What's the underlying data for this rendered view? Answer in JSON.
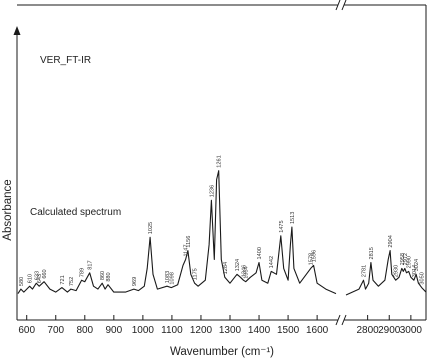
{
  "chart_data": {
    "type": "line",
    "xlabel": "Wavenumber (cm⁻¹)",
    "ylabel": "Absorbance",
    "x_segments": [
      {
        "xlim": [
          570,
          1665
        ],
        "ticks": [
          600,
          700,
          800,
          900,
          1000,
          1100,
          1200,
          1300,
          1400,
          1500,
          1600
        ]
      },
      {
        "xlim": [
          2700,
          3070
        ],
        "ticks": [
          2800,
          2900,
          3000
        ]
      }
    ],
    "ylim": [
      0,
      1
    ],
    "series": [
      {
        "name": "VER_FT-IR",
        "baseline": 0.595,
        "segments": [
          [
            [
              570,
              0.69
            ],
            [
              592,
              0.675
            ],
            [
              600,
              0.66
            ],
            [
              610,
              0.663
            ],
            [
              620,
              0.665
            ],
            [
              636,
              0.69
            ],
            [
              645,
              0.67
            ],
            [
              660,
              0.66
            ],
            [
              683,
              0.68
            ],
            [
              700,
              0.65
            ],
            [
              730,
              0.665
            ],
            [
              750,
              0.688
            ],
            [
              765,
              0.705
            ],
            [
              780,
              0.68
            ],
            [
              800,
              0.7
            ],
            [
              810,
              0.72
            ],
            [
              817,
              0.712
            ],
            [
              825,
              0.7
            ],
            [
              840,
              0.685
            ],
            [
              852,
              0.695
            ],
            [
              862,
              0.675
            ],
            [
              880,
              0.668
            ],
            [
              894,
              0.68
            ],
            [
              905,
              0.665
            ],
            [
              914,
              0.675
            ],
            [
              930,
              0.665
            ],
            [
              945,
              0.68
            ],
            [
              960,
              0.66
            ],
            [
              980,
              0.67
            ],
            [
              1000,
              0.68
            ],
            [
              1015,
              0.735
            ],
            [
              1025,
              0.85
            ],
            [
              1032,
              0.77
            ],
            [
              1045,
              0.685
            ],
            [
              1080,
              0.668
            ],
            [
              1105,
              0.68
            ],
            [
              1122,
              0.7
            ],
            [
              1135,
              0.685
            ],
            [
              1145,
              0.73
            ],
            [
              1155,
              0.745
            ],
            [
              1165,
              0.7
            ],
            [
              1180,
              0.69
            ],
            [
              1194,
              0.695
            ],
            [
              1206,
              0.685
            ],
            [
              1218,
              0.7
            ],
            [
              1230,
              0.725
            ],
            [
              1240,
              0.79
            ],
            [
              1248,
              0.85
            ],
            [
              1256,
              0.92
            ],
            [
              1261,
              0.945
            ],
            [
              1268,
              0.82
            ],
            [
              1282,
              0.69
            ],
            [
              1300,
              0.68
            ],
            [
              1320,
              0.695
            ],
            [
              1336,
              0.705
            ],
            [
              1350,
              0.682
            ],
            [
              1370,
              0.69
            ],
            [
              1384,
              0.7
            ],
            [
              1398,
              0.69
            ],
            [
              1412,
              0.71
            ],
            [
              1418,
              0.738
            ],
            [
              1430,
              0.705
            ],
            [
              1445,
              0.715
            ],
            [
              1462,
              0.805
            ],
            [
              1473,
              0.77
            ],
            [
              1485,
              0.722
            ],
            [
              1500,
              0.78
            ],
            [
              1510,
              0.92
            ],
            [
              1519,
              0.975
            ],
            [
              1530,
              0.72
            ],
            [
              1550,
              0.67
            ],
            [
              1575,
              0.682
            ],
            [
              1588,
              0.712
            ],
            [
              1600,
              0.7
            ],
            [
              1612,
              0.665
            ],
            [
              1640,
              0.645
            ],
            [
              1665,
              0.635
            ]
          ],
          [
            [
              2700,
              0.64
            ],
            [
              2760,
              0.645
            ],
            [
              2810,
              0.66
            ],
            [
              2838,
              0.69
            ],
            [
              2855,
              0.7
            ],
            [
              2872,
              0.685
            ],
            [
              2885,
              0.7
            ],
            [
              2910,
              0.725
            ],
            [
              2925,
              0.735
            ],
            [
              2937,
              0.745
            ],
            [
              2950,
              0.735
            ],
            [
              2960,
              0.72
            ],
            [
              2975,
              0.7
            ],
            [
              2990,
              0.69
            ],
            [
              3010,
              0.68
            ],
            [
              3037,
              0.672
            ],
            [
              3060,
              0.66
            ],
            [
              3070,
              0.655
            ]
          ]
        ],
        "peaks": [
          {
            "x": 592,
            "label": "592"
          },
          {
            "x": 601,
            "label": "601"
          },
          {
            "x": 636,
            "label": "636"
          },
          {
            "x": 683,
            "label": "683"
          },
          {
            "x": 750,
            "label": "750"
          },
          {
            "x": 769,
            "label": "769"
          },
          {
            "x": 810,
            "label": "810"
          },
          {
            "x": 817,
            "label": "817"
          },
          {
            "x": 852,
            "label": "852"
          },
          {
            "x": 862,
            "label": "862"
          },
          {
            "x": 894,
            "label": "894"
          },
          {
            "x": 914,
            "label": "914"
          },
          {
            "x": 945,
            "label": "945"
          },
          {
            "x": 1025,
            "label": "1026"
          },
          {
            "x": 1122,
            "label": "1122"
          },
          {
            "x": 1145,
            "label": "1142"
          },
          {
            "x": 1155,
            "label": "1155"
          },
          {
            "x": 1194,
            "label": "1194"
          },
          {
            "x": 1206,
            "label": "1206"
          },
          {
            "x": 1218,
            "label": "1218"
          },
          {
            "x": 1248,
            "label": "1248"
          },
          {
            "x": 1261,
            "label": "1261"
          },
          {
            "x": 1336,
            "label": "1337"
          },
          {
            "x": 1350,
            "label": "1350"
          },
          {
            "x": 1372,
            "label": "1372"
          },
          {
            "x": 1384,
            "label": "1384"
          },
          {
            "x": 1418,
            "label": "1418"
          },
          {
            "x": 1462,
            "label": "1462"
          },
          {
            "x": 1519,
            "label": "1519"
          },
          {
            "x": 1588,
            "label": "1582"
          },
          {
            "x": 1600,
            "label": "1598"
          },
          {
            "x": 2838,
            "label": "2838"
          },
          {
            "x": 2872,
            "label": "2876"
          },
          {
            "x": 2925,
            "label": "2927"
          },
          {
            "x": 2937,
            "label": "2937"
          },
          {
            "x": 2950,
            "label": "2950"
          },
          {
            "x": 3037,
            "label": "3037"
          }
        ]
      },
      {
        "name": "Calculated spectrum",
        "baseline": 0.0,
        "segments": [
          [
            [
              570,
              0.015
            ],
            [
              580,
              0.03
            ],
            [
              590,
              0.02
            ],
            [
              610,
              0.04
            ],
            [
              620,
              0.03
            ],
            [
              633,
              0.05
            ],
            [
              643,
              0.04
            ],
            [
              660,
              0.055
            ],
            [
              680,
              0.03
            ],
            [
              700,
              0.02
            ],
            [
              721,
              0.035
            ],
            [
              740,
              0.02
            ],
            [
              752,
              0.03
            ],
            [
              770,
              0.025
            ],
            [
              789,
              0.06
            ],
            [
              800,
              0.055
            ],
            [
              817,
              0.085
            ],
            [
              830,
              0.04
            ],
            [
              845,
              0.03
            ],
            [
              860,
              0.05
            ],
            [
              870,
              0.03
            ],
            [
              880,
              0.045
            ],
            [
              900,
              0.02
            ],
            [
              940,
              0.02
            ],
            [
              969,
              0.03
            ],
            [
              985,
              0.025
            ],
            [
              1005,
              0.04
            ],
            [
              1015,
              0.1
            ],
            [
              1025,
              0.205
            ],
            [
              1035,
              0.08
            ],
            [
              1050,
              0.03
            ],
            [
              1083,
              0.04
            ],
            [
              1098,
              0.035
            ],
            [
              1120,
              0.045
            ],
            [
              1138,
              0.11
            ],
            [
              1147,
              0.13
            ],
            [
              1155,
              0.16
            ],
            [
              1165,
              0.08
            ],
            [
              1178,
              0.05
            ],
            [
              1190,
              0.04
            ],
            [
              1215,
              0.06
            ],
            [
              1228,
              0.18
            ],
            [
              1236,
              0.33
            ],
            [
              1246,
              0.13
            ],
            [
              1254,
              0.4
            ],
            [
              1261,
              0.43
            ],
            [
              1270,
              0.13
            ],
            [
              1282,
              0.07
            ],
            [
              1300,
              0.05
            ],
            [
              1324,
              0.08
            ],
            [
              1336,
              0.07
            ],
            [
              1346,
              0.06
            ],
            [
              1354,
              0.055
            ],
            [
              1370,
              0.07
            ],
            [
              1390,
              0.085
            ],
            [
              1400,
              0.12
            ],
            [
              1410,
              0.06
            ],
            [
              1430,
              0.05
            ],
            [
              1442,
              0.09
            ],
            [
              1460,
              0.08
            ],
            [
              1475,
              0.21
            ],
            [
              1485,
              0.1
            ],
            [
              1500,
              0.06
            ],
            [
              1508,
              0.18
            ],
            [
              1513,
              0.24
            ],
            [
              1520,
              0.1
            ],
            [
              1540,
              0.05
            ],
            [
              1578,
              0.1
            ],
            [
              1588,
              0.11
            ],
            [
              1600,
              0.05
            ],
            [
              1630,
              0.03
            ],
            [
              1665,
              0.015
            ]
          ],
          [
            [
              2700,
              0.01
            ],
            [
              2760,
              0.03
            ],
            [
              2781,
              0.06
            ],
            [
              2790,
              0.03
            ],
            [
              2805,
              0.05
            ],
            [
              2815,
              0.12
            ],
            [
              2825,
              0.06
            ],
            [
              2850,
              0.04
            ],
            [
              2880,
              0.06
            ],
            [
              2895,
              0.13
            ],
            [
              2904,
              0.16
            ],
            [
              2912,
              0.08
            ],
            [
              2930,
              0.06
            ],
            [
              2945,
              0.07
            ],
            [
              2958,
              0.1
            ],
            [
              2965,
              0.09
            ],
            [
              2972,
              0.1
            ],
            [
              2980,
              0.085
            ],
            [
              2990,
              0.09
            ],
            [
              3000,
              0.07
            ],
            [
              3014,
              0.06
            ],
            [
              3024,
              0.08
            ],
            [
              3035,
              0.05
            ],
            [
              3050,
              0.035
            ],
            [
              3070,
              0.02
            ]
          ]
        ],
        "peaks": [
          {
            "x": 580,
            "label": "580"
          },
          {
            "x": 610,
            "label": "610"
          },
          {
            "x": 633,
            "label": "633"
          },
          {
            "x": 643,
            "label": "643"
          },
          {
            "x": 660,
            "label": "660"
          },
          {
            "x": 721,
            "label": "721"
          },
          {
            "x": 752,
            "label": "752"
          },
          {
            "x": 789,
            "label": "789"
          },
          {
            "x": 817,
            "label": "817"
          },
          {
            "x": 860,
            "label": "860"
          },
          {
            "x": 880,
            "label": "880"
          },
          {
            "x": 969,
            "label": "969"
          },
          {
            "x": 1025,
            "label": "1025"
          },
          {
            "x": 1083,
            "label": "1083"
          },
          {
            "x": 1098,
            "label": "1098"
          },
          {
            "x": 1147,
            "label": "1147"
          },
          {
            "x": 1155,
            "label": "1156"
          },
          {
            "x": 1178,
            "label": "1175"
          },
          {
            "x": 1236,
            "label": "1236"
          },
          {
            "x": 1261,
            "label": "1261"
          },
          {
            "x": 1282,
            "label": "1284"
          },
          {
            "x": 1324,
            "label": "1324"
          },
          {
            "x": 1346,
            "label": "1346"
          },
          {
            "x": 1354,
            "label": "1354"
          },
          {
            "x": 1400,
            "label": "1400"
          },
          {
            "x": 1442,
            "label": "1442"
          },
          {
            "x": 1475,
            "label": "1475"
          },
          {
            "x": 1513,
            "label": "1513"
          },
          {
            "x": 1578,
            "label": "1578"
          },
          {
            "x": 1588,
            "label": "1596"
          },
          {
            "x": 2781,
            "label": "2781"
          },
          {
            "x": 2815,
            "label": "2815"
          },
          {
            "x": 2904,
            "label": "2904"
          },
          {
            "x": 2930,
            "label": "2930"
          },
          {
            "x": 2958,
            "label": "2958"
          },
          {
            "x": 2972,
            "label": "2972"
          },
          {
            "x": 2990,
            "label": "2990"
          },
          {
            "x": 3014,
            "label": "3014"
          },
          {
            "x": 3024,
            "label": "3024"
          },
          {
            "x": 3050,
            "label": "3050"
          }
        ]
      }
    ],
    "grid": false,
    "legend": "none"
  }
}
